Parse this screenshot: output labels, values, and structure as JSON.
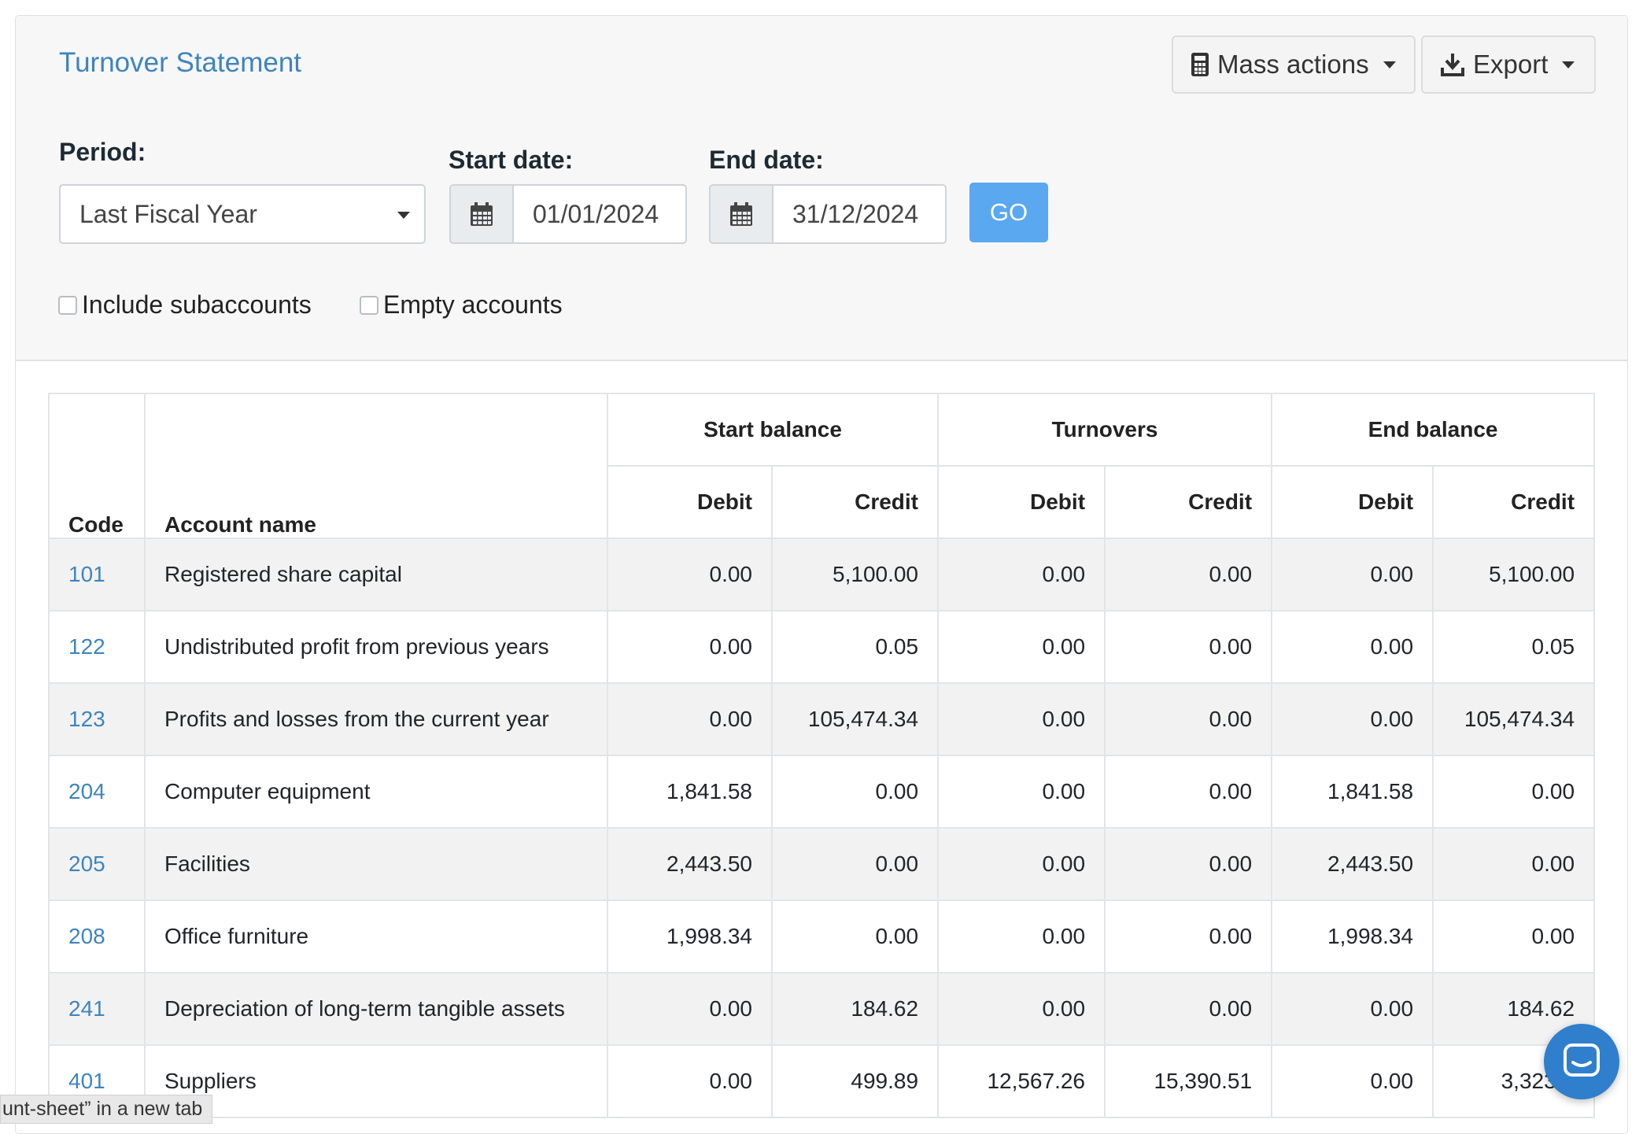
{
  "header": {
    "title": "Turnover Statement",
    "mass_actions_label": "Mass actions",
    "export_label": "Export"
  },
  "filters": {
    "period_label": "Period:",
    "period_value": "Last Fiscal Year",
    "start_label": "Start date:",
    "start_value": "01/01/2024",
    "end_label": "End date:",
    "end_value": "31/12/2024",
    "go_label": "GO",
    "include_subaccounts_label": "Include subaccounts",
    "empty_accounts_label": "Empty accounts"
  },
  "table": {
    "group_headers": [
      "Start balance",
      "Turnovers",
      "End balance"
    ],
    "code_header": "Code",
    "name_header": "Account name",
    "sub_headers": [
      "Debit",
      "Credit",
      "Debit",
      "Credit",
      "Debit",
      "Credit"
    ],
    "rows": [
      {
        "code": "101",
        "name": "Registered share capital",
        "values": [
          "0.00",
          "5,100.00",
          "0.00",
          "0.00",
          "0.00",
          "5,100.00"
        ]
      },
      {
        "code": "122",
        "name": "Undistributed profit from previous years",
        "values": [
          "0.00",
          "0.05",
          "0.00",
          "0.00",
          "0.00",
          "0.05"
        ]
      },
      {
        "code": "123",
        "name": "Profits and losses from the current year",
        "values": [
          "0.00",
          "105,474.34",
          "0.00",
          "0.00",
          "0.00",
          "105,474.34"
        ]
      },
      {
        "code": "204",
        "name": "Computer equipment",
        "values": [
          "1,841.58",
          "0.00",
          "0.00",
          "0.00",
          "1,841.58",
          "0.00"
        ]
      },
      {
        "code": "205",
        "name": "Facilities",
        "values": [
          "2,443.50",
          "0.00",
          "0.00",
          "0.00",
          "2,443.50",
          "0.00"
        ]
      },
      {
        "code": "208",
        "name": "Office furniture",
        "values": [
          "1,998.34",
          "0.00",
          "0.00",
          "0.00",
          "1,998.34",
          "0.00"
        ]
      },
      {
        "code": "241",
        "name": "Depreciation of long-term tangible assets",
        "values": [
          "0.00",
          "184.62",
          "0.00",
          "0.00",
          "0.00",
          "184.62"
        ]
      },
      {
        "code": "401",
        "name": "Suppliers",
        "values": [
          "0.00",
          "499.89",
          "12,567.26",
          "15,390.51",
          "0.00",
          "3,323.1"
        ]
      }
    ]
  },
  "status_bar": {
    "text": "unt-sheet” in a new tab"
  },
  "icons": {
    "mass_actions": "calculator-icon",
    "export": "download-icon",
    "date_addon": "calendar-icon",
    "chat": "chat-icon"
  },
  "colors": {
    "title": "#3f84bd",
    "go_button": "#5aa8ef",
    "chat_bubble": "#2f7fcc",
    "stripe": "#f2f2f2"
  }
}
